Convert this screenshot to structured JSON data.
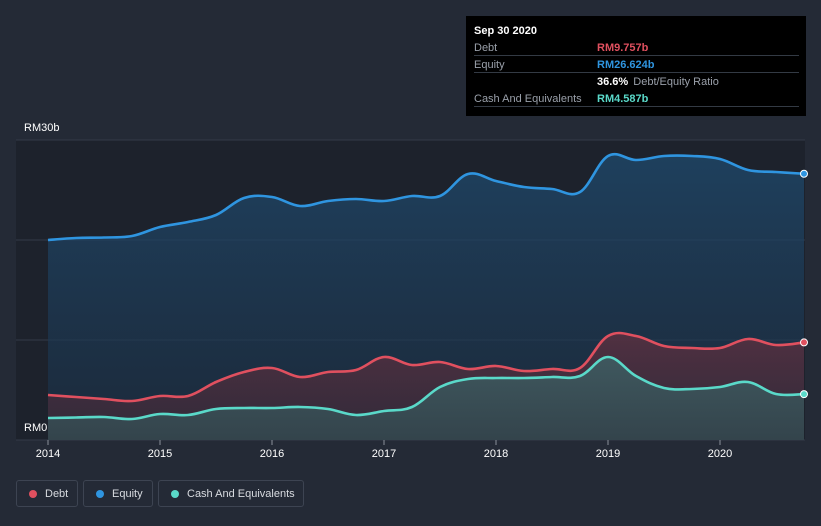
{
  "tooltip": {
    "date": "Sep 30 2020",
    "rows": [
      {
        "label": "Debt",
        "value": "RM9.757b",
        "color": "#e0505f"
      },
      {
        "label": "Equity",
        "value": "RM26.624b",
        "color": "#2f95e0"
      },
      {
        "label": "",
        "value": "36.6%",
        "desc": "Debt/Equity Ratio",
        "color": "#ffffff"
      },
      {
        "label": "Cash And Equivalents",
        "value": "RM4.587b",
        "color": "#5ad9c9"
      }
    ]
  },
  "legend": [
    {
      "label": "Debt",
      "color": "#e0505f"
    },
    {
      "label": "Equity",
      "color": "#2f95e0"
    },
    {
      "label": "Cash And Equivalents",
      "color": "#5ad9c9"
    }
  ],
  "chart_data": {
    "type": "area",
    "title": "",
    "xlabel": "",
    "ylabel": "",
    "y_top_label": "RM30b",
    "y_bottom_label": "RM0",
    "ylim": [
      0,
      30
    ],
    "xlim": [
      2014.0,
      2020.75
    ],
    "x_ticks": [
      2014,
      2015,
      2016,
      2017,
      2018,
      2019,
      2020
    ],
    "x_tick_labels": [
      "2014",
      "2015",
      "2016",
      "2017",
      "2018",
      "2019",
      "2020"
    ],
    "grid": true,
    "legend_position": "bottom-left",
    "series": [
      {
        "name": "Equity",
        "color": "#2f95e0",
        "points": [
          [
            2014.0,
            20.0
          ],
          [
            2014.25,
            20.2
          ],
          [
            2014.5,
            20.25
          ],
          [
            2014.75,
            20.4
          ],
          [
            2015.0,
            21.3
          ],
          [
            2015.25,
            21.8
          ],
          [
            2015.5,
            22.5
          ],
          [
            2015.75,
            24.2
          ],
          [
            2016.0,
            24.3
          ],
          [
            2016.25,
            23.4
          ],
          [
            2016.5,
            23.9
          ],
          [
            2016.75,
            24.1
          ],
          [
            2017.0,
            23.9
          ],
          [
            2017.25,
            24.4
          ],
          [
            2017.5,
            24.4
          ],
          [
            2017.75,
            26.6
          ],
          [
            2018.0,
            25.9
          ],
          [
            2018.25,
            25.3
          ],
          [
            2018.5,
            25.1
          ],
          [
            2018.75,
            24.8
          ],
          [
            2019.0,
            28.4
          ],
          [
            2019.25,
            28.0
          ],
          [
            2019.5,
            28.4
          ],
          [
            2019.75,
            28.4
          ],
          [
            2020.0,
            28.1
          ],
          [
            2020.25,
            27.0
          ],
          [
            2020.5,
            26.8
          ],
          [
            2020.75,
            26.624
          ]
        ]
      },
      {
        "name": "Debt",
        "color": "#e0505f",
        "points": [
          [
            2014.0,
            4.5
          ],
          [
            2014.25,
            4.3
          ],
          [
            2014.5,
            4.1
          ],
          [
            2014.75,
            3.9
          ],
          [
            2015.0,
            4.4
          ],
          [
            2015.25,
            4.4
          ],
          [
            2015.5,
            5.8
          ],
          [
            2015.75,
            6.8
          ],
          [
            2016.0,
            7.2
          ],
          [
            2016.25,
            6.3
          ],
          [
            2016.5,
            6.8
          ],
          [
            2016.75,
            7.0
          ],
          [
            2017.0,
            8.3
          ],
          [
            2017.25,
            7.5
          ],
          [
            2017.5,
            7.8
          ],
          [
            2017.75,
            7.1
          ],
          [
            2018.0,
            7.4
          ],
          [
            2018.25,
            6.9
          ],
          [
            2018.5,
            7.1
          ],
          [
            2018.75,
            7.2
          ],
          [
            2019.0,
            10.4
          ],
          [
            2019.25,
            10.4
          ],
          [
            2019.5,
            9.4
          ],
          [
            2019.75,
            9.2
          ],
          [
            2020.0,
            9.2
          ],
          [
            2020.25,
            10.1
          ],
          [
            2020.5,
            9.5
          ],
          [
            2020.75,
            9.757
          ]
        ]
      },
      {
        "name": "Cash And Equivalents",
        "color": "#5ad9c9",
        "points": [
          [
            2014.0,
            2.2
          ],
          [
            2014.25,
            2.25
          ],
          [
            2014.5,
            2.3
          ],
          [
            2014.75,
            2.1
          ],
          [
            2015.0,
            2.6
          ],
          [
            2015.25,
            2.5
          ],
          [
            2015.5,
            3.1
          ],
          [
            2015.75,
            3.2
          ],
          [
            2016.0,
            3.2
          ],
          [
            2016.25,
            3.3
          ],
          [
            2016.5,
            3.1
          ],
          [
            2016.75,
            2.5
          ],
          [
            2017.0,
            2.9
          ],
          [
            2017.25,
            3.3
          ],
          [
            2017.5,
            5.3
          ],
          [
            2017.75,
            6.1
          ],
          [
            2018.0,
            6.2
          ],
          [
            2018.25,
            6.2
          ],
          [
            2018.5,
            6.3
          ],
          [
            2018.75,
            6.4
          ],
          [
            2019.0,
            8.3
          ],
          [
            2019.25,
            6.4
          ],
          [
            2019.5,
            5.2
          ],
          [
            2019.75,
            5.1
          ],
          [
            2020.0,
            5.3
          ],
          [
            2020.25,
            5.8
          ],
          [
            2020.5,
            4.6
          ],
          [
            2020.75,
            4.587
          ]
        ]
      }
    ]
  }
}
